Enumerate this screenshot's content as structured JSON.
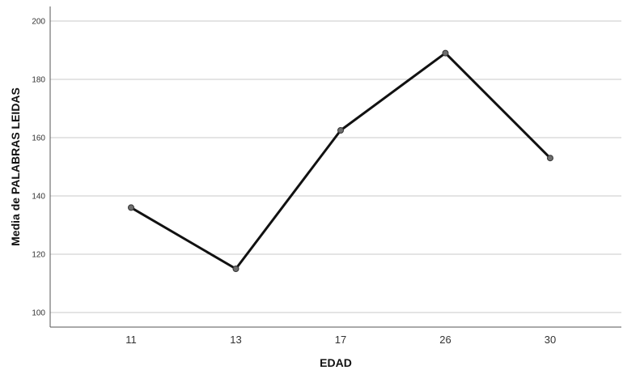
{
  "chart_data": {
    "type": "line",
    "categories": [
      "11",
      "13",
      "17",
      "26",
      "30"
    ],
    "values": [
      136,
      115,
      162.5,
      189,
      153
    ],
    "xlabel": "EDAD",
    "ylabel": "Media de PALABRAS LEIDAS",
    "ylim": [
      95,
      205
    ],
    "y_ticks": [
      "100",
      "120",
      "140",
      "160",
      "180",
      "200"
    ],
    "grid": "horizontal",
    "colors": {
      "line": "#111111",
      "marker_fill": "#6e6e6e",
      "marker_stroke": "#333333",
      "grid": "#c8c8c8",
      "axis": "#555555"
    }
  }
}
